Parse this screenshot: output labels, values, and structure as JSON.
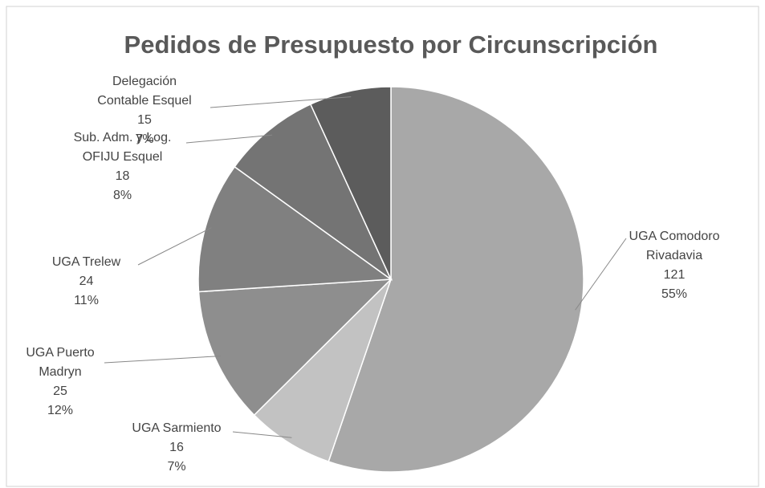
{
  "chart_data": {
    "type": "pie",
    "title": "Pedidos de Presupuesto por Circunscripción",
    "categories": [
      "UGA Comodoro Rivadavia",
      "UGA Sarmiento",
      "UGA Puerto Madryn",
      "UGA Trelew",
      "Sub. Adm. y Log. OFIJU Esquel",
      "Delegación Contable Esquel"
    ],
    "values": [
      121,
      16,
      25,
      24,
      18,
      15
    ],
    "percent_labels": [
      "55%",
      "7%",
      "12%",
      "11%",
      "8%",
      "7%"
    ],
    "colors": [
      "#a8a8a8",
      "#c2c2c2",
      "#8e8e8e",
      "#808080",
      "#747474",
      "#5c5c5c"
    ]
  }
}
